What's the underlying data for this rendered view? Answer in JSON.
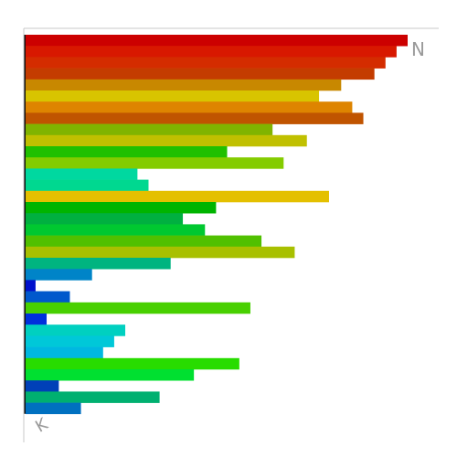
{
  "chart_data": {
    "type": "bar",
    "orientation": "horizontal",
    "title": "",
    "xlabel": "",
    "ylabel": "",
    "xlim": [
      0,
      34.5
    ],
    "grid": false,
    "legend": "none",
    "corner_labels": {
      "top_right": "N",
      "bottom_left": "K"
    },
    "values": [
      34.5,
      33.5,
      32.5,
      31.5,
      28.5,
      26.5,
      29.5,
      30.5,
      22.3,
      25.4,
      18.2,
      23.3,
      10.1,
      11.1,
      27.4,
      17.2,
      14.2,
      16.2,
      21.3,
      24.3,
      13.1,
      6.0,
      0.9,
      4.0,
      20.3,
      1.9,
      9.0,
      8.0,
      7.0,
      19.3,
      15.2,
      3.0,
      12.1,
      5.0
    ],
    "colors": [
      "#cc0000",
      "#d81800",
      "#d42c00",
      "#c43c00",
      "#c88800",
      "#d8c400",
      "#de8400",
      "#c05400",
      "#80b400",
      "#c0c000",
      "#20c000",
      "#84cc00",
      "#00d8a0",
      "#00d890",
      "#e4c000",
      "#00b400",
      "#00b040",
      "#00c830",
      "#50c000",
      "#a8c000",
      "#00b480",
      "#0084c8",
      "#0010cc",
      "#0058cc",
      "#48d000",
      "#0030dc",
      "#00d0c0",
      "#00c8d8",
      "#00b8e0",
      "#28dc00",
      "#00e030",
      "#0040b8",
      "#00b070",
      "#0070c0"
    ]
  }
}
